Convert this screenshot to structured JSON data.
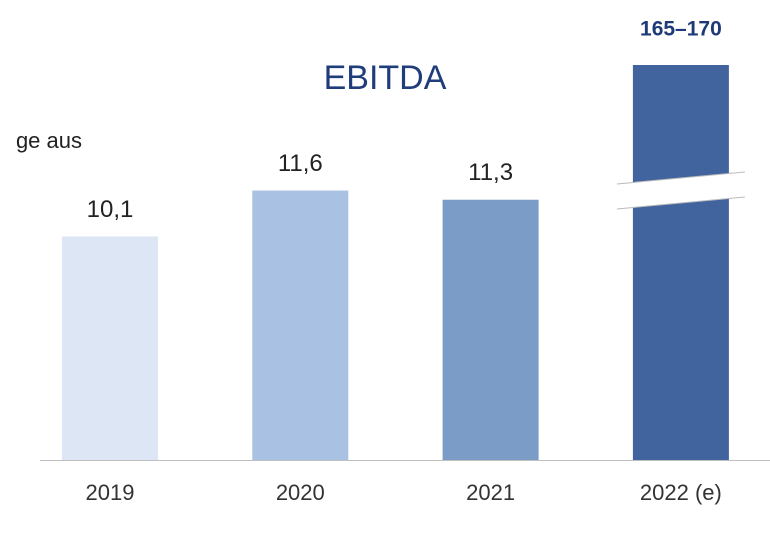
{
  "chart_data": {
    "type": "bar",
    "title": "EBITDA",
    "annotation": "ge aus",
    "categories": [
      "2019",
      "2020",
      "2021",
      "2022 (e)"
    ],
    "values": [
      10.1,
      11.6,
      11.3,
      165
    ],
    "value_labels": [
      "10,1",
      "11,6",
      "11,3",
      "165–170"
    ],
    "colors": [
      "#dce6f4",
      "#a9c1e2",
      "#7b9cc7",
      "#41649e"
    ],
    "ylim": [
      2.8,
      15.7
    ],
    "axis_break": true,
    "grid": false
  }
}
